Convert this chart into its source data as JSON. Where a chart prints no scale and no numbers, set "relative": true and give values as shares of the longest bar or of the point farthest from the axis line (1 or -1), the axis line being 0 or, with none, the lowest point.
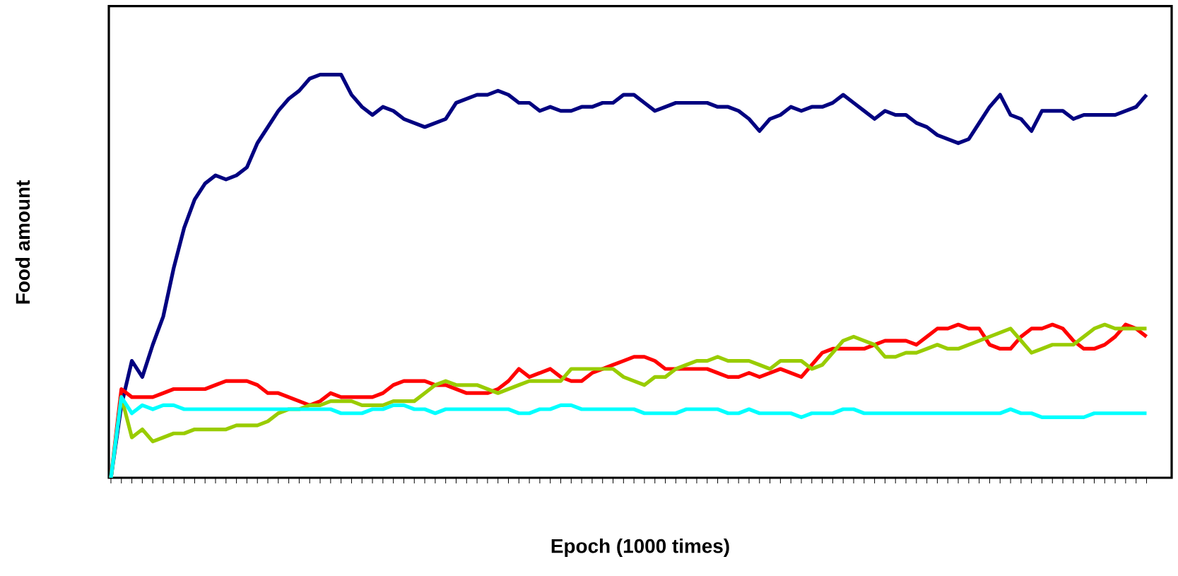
{
  "chart_data": {
    "type": "line",
    "relative": true,
    "xlabel": "Epoch (1000 times)",
    "ylabel": "Food amount",
    "grid": false,
    "marker": "none",
    "line_style": "solid",
    "categories": [
      null,
      null,
      null,
      null,
      null,
      null,
      null,
      null,
      null,
      null,
      null,
      null,
      null,
      null,
      null,
      null,
      null,
      null,
      null,
      null,
      null,
      null,
      null,
      null,
      null,
      null,
      null,
      null,
      null,
      null,
      null,
      null,
      null,
      null,
      null,
      null,
      null,
      null,
      null,
      null,
      null,
      null,
      null,
      null,
      null,
      null,
      null,
      null,
      null,
      null,
      null,
      null,
      null,
      null,
      null,
      null,
      null,
      null,
      null,
      null,
      null,
      null,
      null,
      null,
      null,
      null,
      null,
      null,
      null,
      null,
      null,
      null,
      null,
      null,
      null,
      null,
      null,
      null,
      null,
      null,
      null,
      null,
      null,
      null,
      null,
      null,
      null,
      null,
      null,
      null,
      null,
      null,
      null,
      null,
      null,
      null,
      null,
      null,
      null,
      null
    ],
    "series": [
      {
        "color": "#000080",
        "values": [
          0,
          0.18,
          0.29,
          0.25,
          0.33,
          0.4,
          0.52,
          0.62,
          0.69,
          0.73,
          0.75,
          0.74,
          0.75,
          0.77,
          0.83,
          0.87,
          0.91,
          0.94,
          0.96,
          0.99,
          1.0,
          1.0,
          1.0,
          0.95,
          0.92,
          0.9,
          0.92,
          0.91,
          0.89,
          0.88,
          0.87,
          0.88,
          0.89,
          0.93,
          0.94,
          0.95,
          0.95,
          0.96,
          0.95,
          0.93,
          0.93,
          0.91,
          0.92,
          0.91,
          0.91,
          0.92,
          0.92,
          0.93,
          0.93,
          0.95,
          0.95,
          0.93,
          0.91,
          0.92,
          0.93,
          0.93,
          0.93,
          0.93,
          0.92,
          0.92,
          0.91,
          0.89,
          0.86,
          0.89,
          0.9,
          0.92,
          0.91,
          0.92,
          0.92,
          0.93,
          0.95,
          0.93,
          0.91,
          0.89,
          0.91,
          0.9,
          0.9,
          0.88,
          0.87,
          0.85,
          0.84,
          0.83,
          0.84,
          0.88,
          0.92,
          0.95,
          0.9,
          0.89,
          0.86,
          0.91,
          0.91,
          0.91,
          0.89,
          0.9,
          0.9,
          0.9,
          0.9,
          0.91,
          0.92,
          0.95
        ]
      },
      {
        "color": "#ff0000",
        "values": [
          0,
          0.22,
          0.2,
          0.2,
          0.2,
          0.21,
          0.22,
          0.22,
          0.22,
          0.22,
          0.23,
          0.24,
          0.24,
          0.24,
          0.23,
          0.21,
          0.21,
          0.2,
          0.19,
          0.18,
          0.19,
          0.21,
          0.2,
          0.2,
          0.2,
          0.2,
          0.21,
          0.23,
          0.24,
          0.24,
          0.24,
          0.23,
          0.23,
          0.22,
          0.21,
          0.21,
          0.21,
          0.22,
          0.24,
          0.27,
          0.25,
          0.26,
          0.27,
          0.25,
          0.24,
          0.24,
          0.26,
          0.27,
          0.28,
          0.29,
          0.3,
          0.3,
          0.29,
          0.27,
          0.27,
          0.27,
          0.27,
          0.27,
          0.26,
          0.25,
          0.25,
          0.26,
          0.25,
          0.26,
          0.27,
          0.26,
          0.25,
          0.28,
          0.31,
          0.32,
          0.32,
          0.32,
          0.32,
          0.33,
          0.34,
          0.34,
          0.34,
          0.33,
          0.35,
          0.37,
          0.37,
          0.38,
          0.37,
          0.37,
          0.33,
          0.32,
          0.32,
          0.35,
          0.37,
          0.37,
          0.38,
          0.37,
          0.34,
          0.32,
          0.32,
          0.33,
          0.35,
          0.38,
          0.37,
          0.35
        ]
      },
      {
        "color": "#99cc00",
        "values": [
          0,
          0.2,
          0.1,
          0.12,
          0.09,
          0.1,
          0.11,
          0.11,
          0.12,
          0.12,
          0.12,
          0.12,
          0.13,
          0.13,
          0.13,
          0.14,
          0.16,
          0.17,
          0.17,
          0.18,
          0.18,
          0.19,
          0.19,
          0.19,
          0.18,
          0.18,
          0.18,
          0.19,
          0.19,
          0.19,
          0.21,
          0.23,
          0.24,
          0.23,
          0.23,
          0.23,
          0.22,
          0.21,
          0.22,
          0.23,
          0.24,
          0.24,
          0.24,
          0.24,
          0.27,
          0.27,
          0.27,
          0.27,
          0.27,
          0.25,
          0.24,
          0.23,
          0.25,
          0.25,
          0.27,
          0.28,
          0.29,
          0.29,
          0.3,
          0.29,
          0.29,
          0.29,
          0.28,
          0.27,
          0.29,
          0.29,
          0.29,
          0.27,
          0.28,
          0.31,
          0.34,
          0.35,
          0.34,
          0.33,
          0.3,
          0.3,
          0.31,
          0.31,
          0.32,
          0.33,
          0.32,
          0.32,
          0.33,
          0.34,
          0.35,
          0.36,
          0.37,
          0.34,
          0.31,
          0.32,
          0.33,
          0.33,
          0.33,
          0.35,
          0.37,
          0.38,
          0.37,
          0.37,
          0.37,
          0.37
        ]
      },
      {
        "color": "#00ffff",
        "values": [
          0,
          0.2,
          0.16,
          0.18,
          0.17,
          0.18,
          0.18,
          0.17,
          0.17,
          0.17,
          0.17,
          0.17,
          0.17,
          0.17,
          0.17,
          0.17,
          0.17,
          0.17,
          0.17,
          0.17,
          0.17,
          0.17,
          0.16,
          0.16,
          0.16,
          0.17,
          0.17,
          0.18,
          0.18,
          0.17,
          0.17,
          0.16,
          0.17,
          0.17,
          0.17,
          0.17,
          0.17,
          0.17,
          0.17,
          0.16,
          0.16,
          0.17,
          0.17,
          0.18,
          0.18,
          0.17,
          0.17,
          0.17,
          0.17,
          0.17,
          0.17,
          0.16,
          0.16,
          0.16,
          0.16,
          0.17,
          0.17,
          0.17,
          0.17,
          0.16,
          0.16,
          0.17,
          0.16,
          0.16,
          0.16,
          0.16,
          0.15,
          0.16,
          0.16,
          0.16,
          0.17,
          0.17,
          0.16,
          0.16,
          0.16,
          0.16,
          0.16,
          0.16,
          0.16,
          0.16,
          0.16,
          0.16,
          0.16,
          0.16,
          0.16,
          0.16,
          0.17,
          0.16,
          0.16,
          0.15,
          0.15,
          0.15,
          0.15,
          0.15,
          0.16,
          0.16,
          0.16,
          0.16,
          0.16,
          0.16
        ]
      }
    ]
  }
}
